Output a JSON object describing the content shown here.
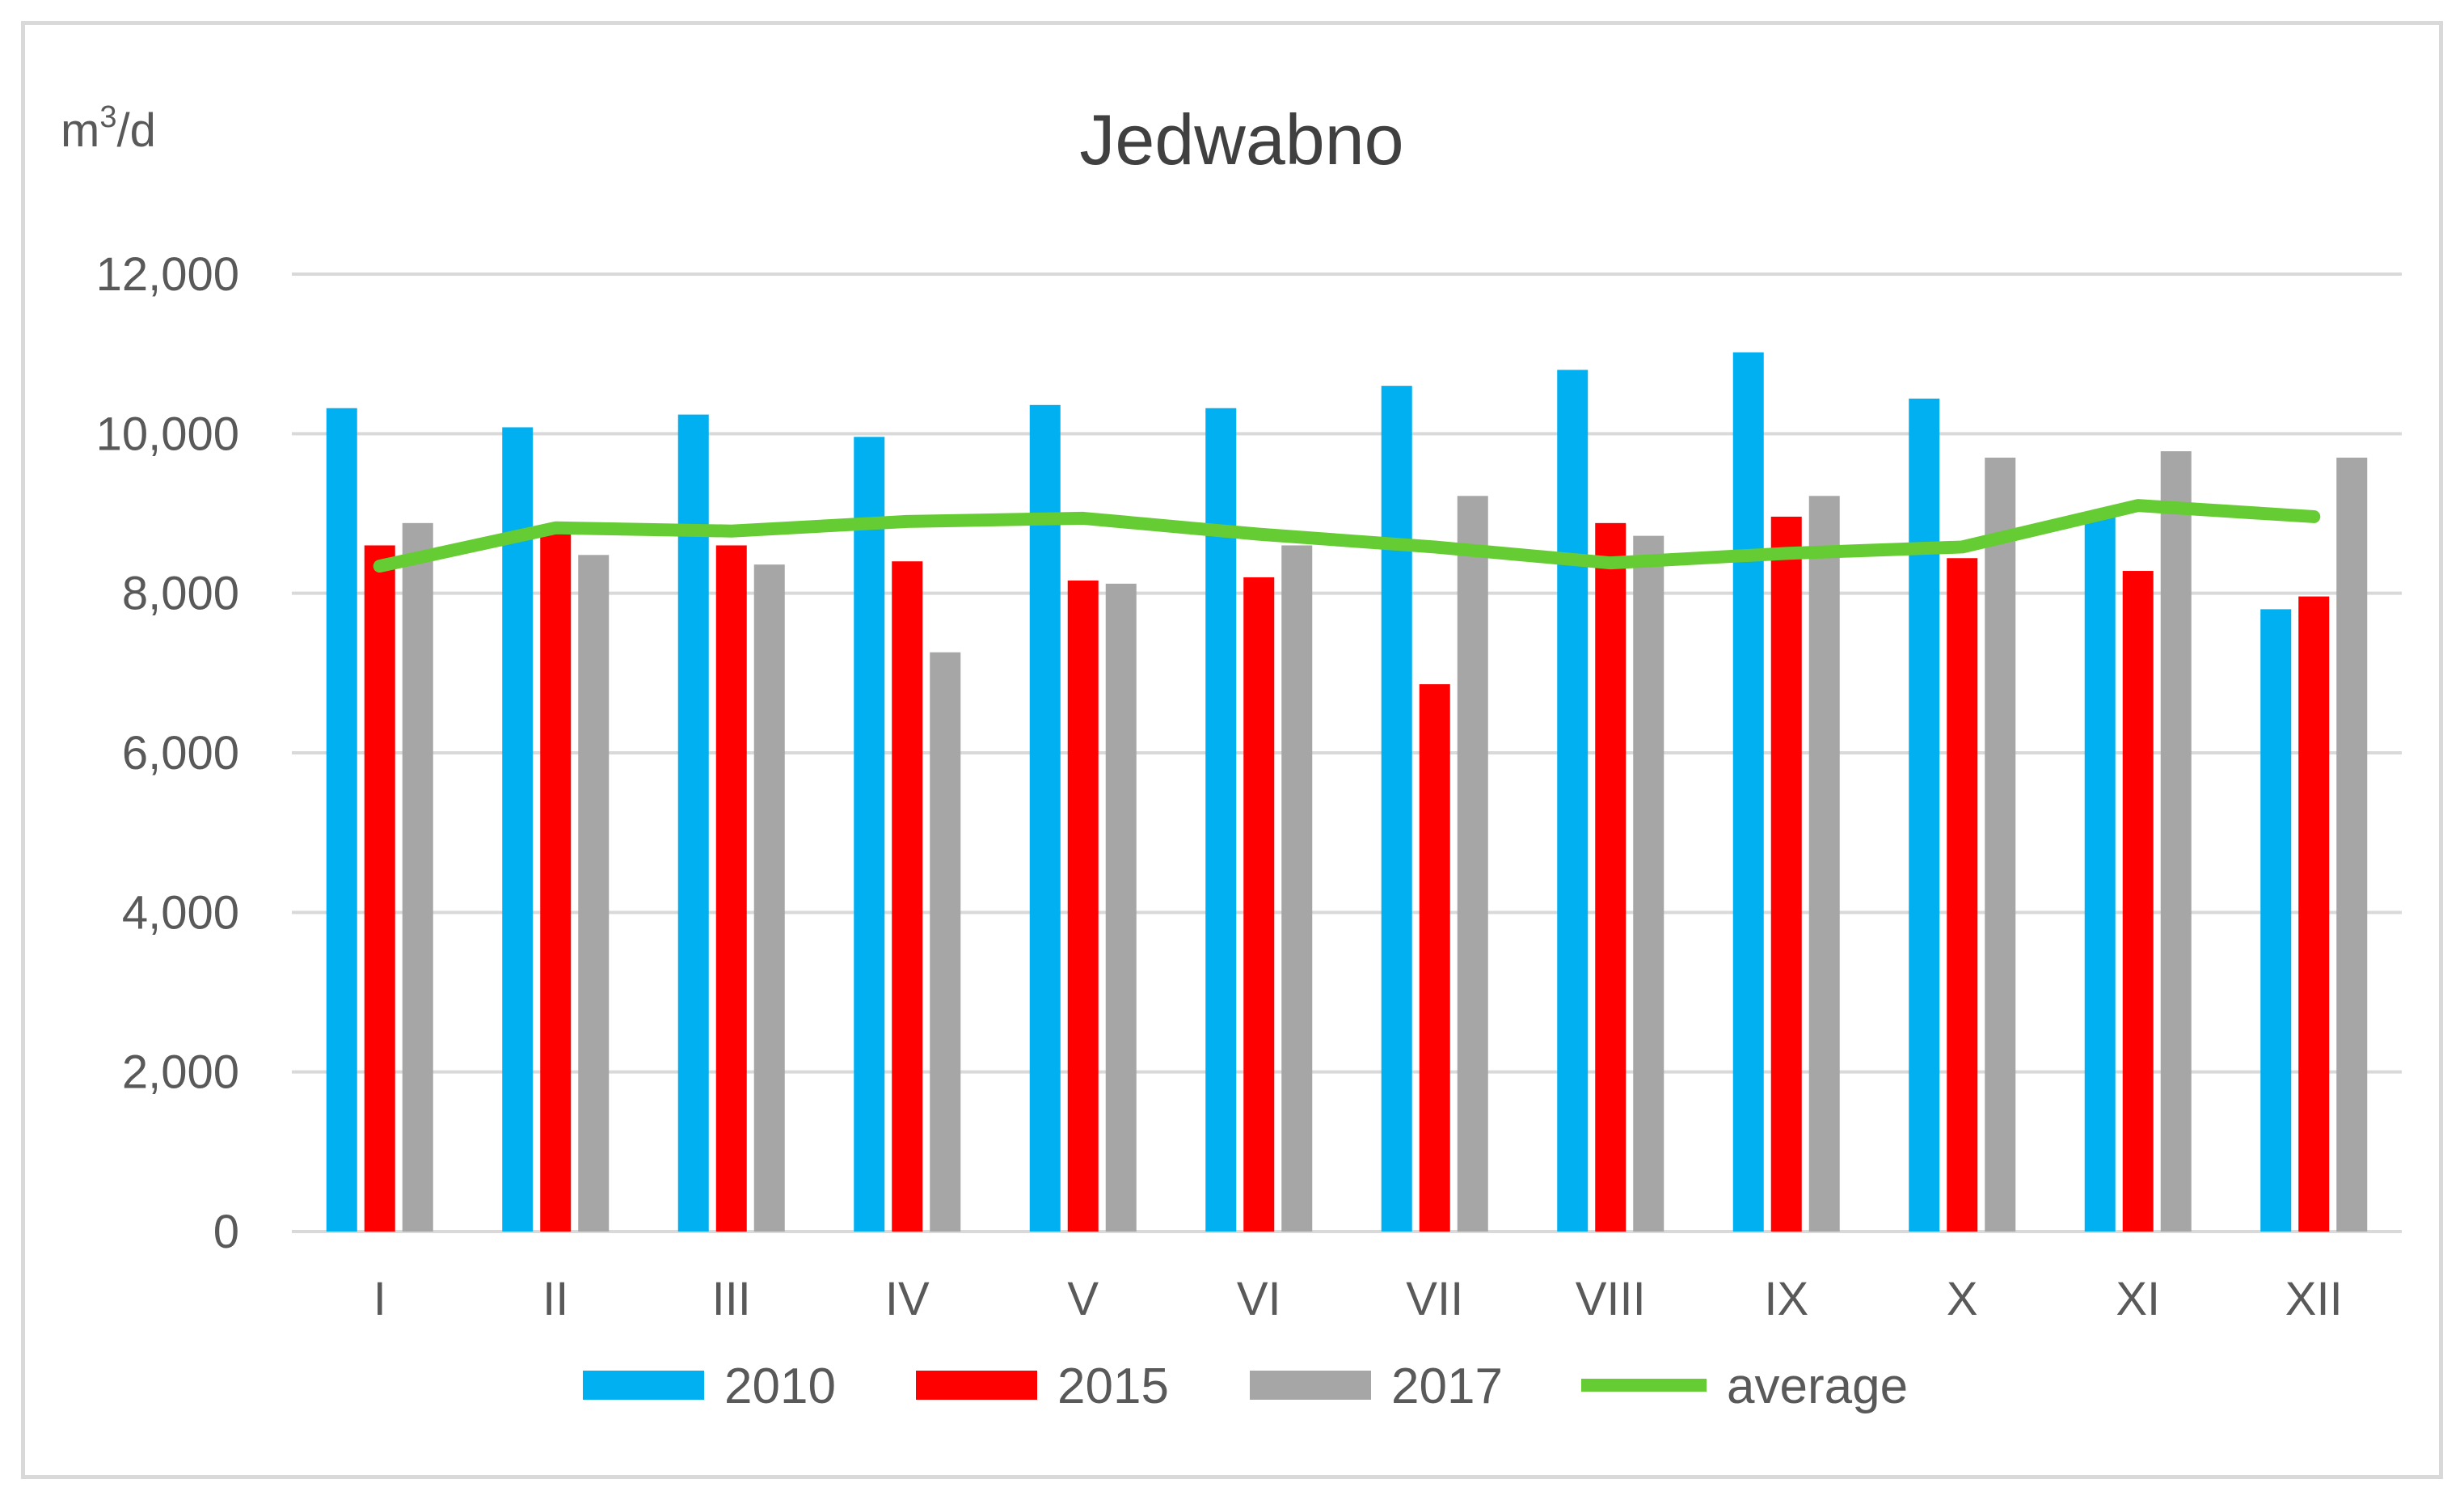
{
  "chart_data": {
    "type": "bar",
    "title": "Jedwabno",
    "unit_label": {
      "base": "m",
      "superscript": "3",
      "suffix": "/d"
    },
    "categories": [
      "I",
      "II",
      "III",
      "IV",
      "V",
      "VI",
      "VII",
      "VIII",
      "IX",
      "X",
      "XI",
      "XII"
    ],
    "ylim": [
      0,
      12000
    ],
    "yticks": [
      0,
      2000,
      4000,
      6000,
      8000,
      10000,
      12000
    ],
    "ytick_labels": [
      "0",
      "2,000",
      "4,000",
      "6,000",
      "8,000",
      "10,000",
      "12,000"
    ],
    "grid": true,
    "legend_position": "bottom",
    "series": [
      {
        "name": "2010",
        "type": "bar",
        "color": "#00b0f0",
        "values": [
          10320,
          10080,
          10240,
          9960,
          10360,
          10320,
          10600,
          10800,
          11020,
          10440,
          9020,
          7800
        ]
      },
      {
        "name": "2015",
        "type": "bar",
        "color": "#ff0000",
        "values": [
          8600,
          8760,
          8600,
          8400,
          8160,
          8200,
          6860,
          8880,
          8960,
          8440,
          8280,
          7960
        ]
      },
      {
        "name": "2017",
        "type": "bar",
        "color": "#a6a6a6",
        "values": [
          8880,
          8480,
          8360,
          7260,
          8120,
          8600,
          9220,
          8720,
          9220,
          9700,
          9780,
          9700
        ]
      },
      {
        "name": "average",
        "type": "line",
        "color": "#66cc33",
        "values": [
          8340,
          8820,
          8780,
          8900,
          8940,
          8740,
          8580,
          8380,
          8500,
          8580,
          9100,
          8960
        ]
      }
    ]
  }
}
